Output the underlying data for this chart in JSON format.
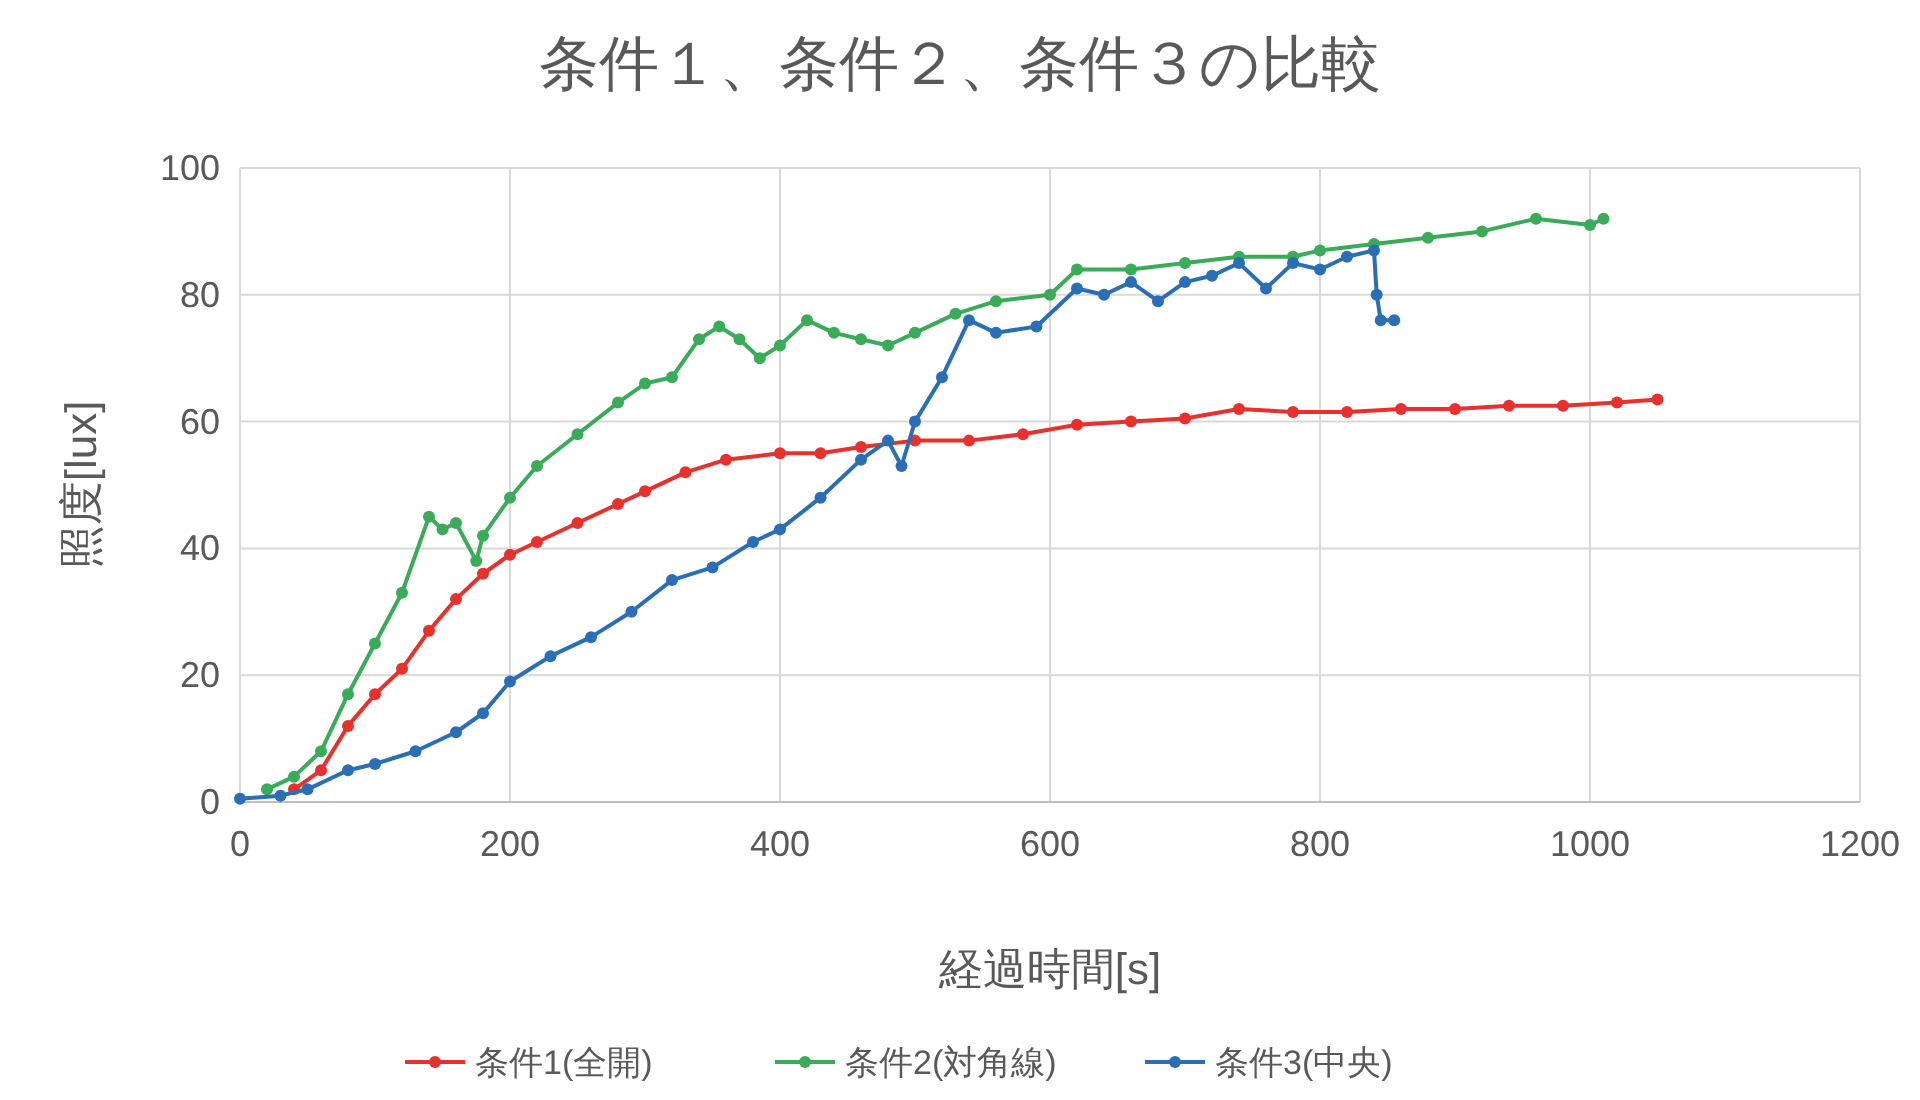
{
  "chart_data": {
    "type": "line",
    "title": "条件１、条件２、条件３の比較",
    "xlabel": "経過時間[s]",
    "ylabel": "照度[lux]",
    "xlim": [
      0,
      1200
    ],
    "xticks": [
      0,
      200,
      400,
      600,
      800,
      1000,
      1200
    ],
    "ylim": [
      0,
      100
    ],
    "yticks": [
      0,
      20,
      40,
      60,
      80,
      100
    ],
    "grid": true,
    "legend": "bottom",
    "marker": "circle",
    "line_style": "solid",
    "series": [
      {
        "name": "条件1(全開)",
        "color": "#e8302c",
        "x": [
          40,
          60,
          80,
          100,
          120,
          140,
          160,
          180,
          200,
          220,
          250,
          280,
          300,
          330,
          360,
          400,
          430,
          460,
          500,
          540,
          580,
          620,
          660,
          700,
          740,
          780,
          820,
          860,
          900,
          940,
          980,
          1020,
          1050
        ],
        "values": [
          2,
          5,
          12,
          17,
          21,
          27,
          32,
          36,
          39,
          41,
          44,
          47,
          49,
          52,
          54,
          55,
          55,
          56,
          57,
          57,
          58,
          59.5,
          60,
          60.5,
          62,
          61.5,
          61.5,
          62,
          62,
          62.5,
          62.5,
          63,
          63.5
        ]
      },
      {
        "name": "条件2(対角線)",
        "color": "#3aab58",
        "x": [
          20,
          40,
          60,
          80,
          100,
          120,
          140,
          150,
          160,
          175,
          180,
          200,
          220,
          250,
          280,
          300,
          320,
          340,
          355,
          370,
          385,
          400,
          420,
          440,
          460,
          480,
          500,
          530,
          560,
          600,
          620,
          660,
          700,
          740,
          780,
          800,
          840,
          880,
          920,
          960,
          1000,
          1010
        ],
        "values": [
          2,
          4,
          8,
          17,
          25,
          33,
          45,
          43,
          44,
          38,
          42,
          48,
          53,
          58,
          63,
          66,
          67,
          73,
          75,
          73,
          70,
          72,
          76,
          74,
          73,
          72,
          74,
          77,
          79,
          80,
          84,
          84,
          85,
          86,
          86,
          87,
          88,
          89,
          90,
          92,
          91,
          92
        ]
      },
      {
        "name": "条件3(中央)",
        "color": "#2a6fb6",
        "x": [
          0,
          30,
          50,
          80,
          100,
          130,
          160,
          180,
          200,
          230,
          260,
          290,
          320,
          350,
          380,
          400,
          430,
          460,
          480,
          490,
          500,
          520,
          540,
          560,
          590,
          620,
          640,
          660,
          680,
          700,
          720,
          740,
          760,
          780,
          800,
          820,
          840,
          842,
          845,
          855
        ],
        "values": [
          0.5,
          1,
          2,
          5,
          6,
          8,
          11,
          14,
          19,
          23,
          26,
          30,
          35,
          37,
          41,
          43,
          48,
          54,
          57,
          53,
          60,
          67,
          76,
          74,
          75,
          81,
          80,
          82,
          79,
          82,
          83,
          85,
          81,
          85,
          84,
          86,
          87,
          80,
          76,
          76
        ]
      }
    ]
  }
}
